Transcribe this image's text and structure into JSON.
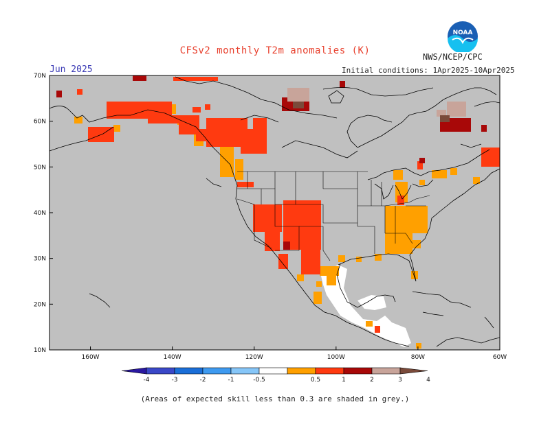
{
  "title": "CFSv2 monthly T2m anomalies (K)",
  "agency": "NWS/NCEP/CPC",
  "logo_text": "NOAA",
  "month": "Jun 2025",
  "initial_conditions": "Initial conditions: 1Apr2025-10Apr2025",
  "footnote": "(Areas of expected skill less than 0.3 are shaded in grey.)",
  "lat_labels": [
    "70N",
    "60N",
    "50N",
    "40N",
    "30N",
    "20N",
    "10N"
  ],
  "lon_labels": [
    "160W",
    "140W",
    "120W",
    "100W",
    "80W",
    "60W"
  ],
  "colorbar": {
    "labels": [
      "-4",
      "-3",
      "-2",
      "-1",
      "-0.5",
      "0.5",
      "1",
      "2",
      "3",
      "4"
    ],
    "colors": [
      "#2a18a0",
      "#3a48c8",
      "#1a6ed8",
      "#3e9af0",
      "#86c6f8",
      "#ffffff",
      "#ffa000",
      "#ff3a10",
      "#a80808",
      "#c8a49a",
      "#7a4a3a"
    ]
  },
  "colors": {
    "land_grey": "#c0c0c0",
    "anom_0_5_1": "#ffa000",
    "anom_1_2": "#ff3a10",
    "anom_2_3": "#a80808",
    "anom_3_4": "#c8a49a",
    "anom_4_plus": "#7a4a3a"
  }
}
